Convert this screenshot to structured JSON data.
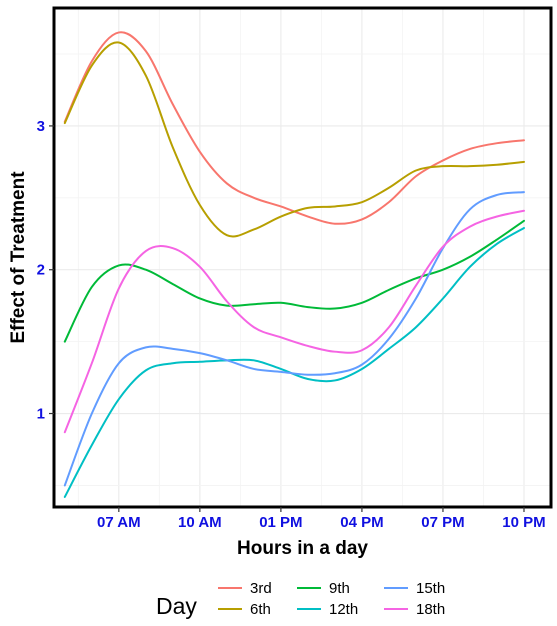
{
  "chart_data": {
    "type": "line",
    "title": "",
    "xlabel": "Hours in a day",
    "ylabel": "Effect of Treatment",
    "x_ticks": [
      "07 AM",
      "10 AM",
      "01 PM",
      "04 PM",
      "07 PM",
      "10 PM"
    ],
    "x_tick_hours": [
      7,
      10,
      13,
      16,
      19,
      22
    ],
    "xlim": [
      4.6,
      23
    ],
    "y_ticks": [
      "1",
      "2",
      "3"
    ],
    "y_tick_values": [
      1,
      2,
      3
    ],
    "ylim": [
      0.35,
      3.82
    ],
    "grid": true,
    "legend_title": "Day",
    "legend_position": "bottom",
    "hours": [
      5,
      6,
      7,
      8,
      9,
      10,
      11,
      12,
      13,
      14,
      15,
      16,
      17,
      18,
      19,
      20,
      21,
      22
    ],
    "series": [
      {
        "name": "3rd",
        "color": "#F8766D",
        "values": [
          3.03,
          3.45,
          3.65,
          3.52,
          3.15,
          2.82,
          2.6,
          2.5,
          2.44,
          2.37,
          2.32,
          2.35,
          2.47,
          2.65,
          2.76,
          2.84,
          2.88,
          2.9
        ]
      },
      {
        "name": "6th",
        "color": "#B79F00",
        "values": [
          3.02,
          3.42,
          3.58,
          3.35,
          2.85,
          2.45,
          2.24,
          2.28,
          2.37,
          2.43,
          2.44,
          2.47,
          2.57,
          2.69,
          2.72,
          2.72,
          2.73,
          2.75
        ]
      },
      {
        "name": "9th",
        "color": "#00BA38",
        "values": [
          1.5,
          1.88,
          2.03,
          2.0,
          1.9,
          1.8,
          1.75,
          1.76,
          1.77,
          1.74,
          1.73,
          1.77,
          1.86,
          1.94,
          2.0,
          2.09,
          2.21,
          2.34
        ]
      },
      {
        "name": "12th",
        "color": "#00BFC4",
        "values": [
          0.42,
          0.78,
          1.1,
          1.3,
          1.35,
          1.36,
          1.37,
          1.37,
          1.31,
          1.24,
          1.23,
          1.31,
          1.45,
          1.6,
          1.8,
          2.02,
          2.18,
          2.29
        ]
      },
      {
        "name": "15th",
        "color": "#619CFF",
        "values": [
          0.5,
          1.0,
          1.35,
          1.46,
          1.45,
          1.42,
          1.37,
          1.31,
          1.29,
          1.27,
          1.28,
          1.34,
          1.52,
          1.8,
          2.15,
          2.42,
          2.52,
          2.54
        ]
      },
      {
        "name": "18th",
        "color": "#F564E3",
        "values": [
          0.87,
          1.35,
          1.87,
          2.13,
          2.15,
          2.02,
          1.78,
          1.6,
          1.53,
          1.47,
          1.43,
          1.44,
          1.6,
          1.89,
          2.16,
          2.3,
          2.37,
          2.41
        ]
      }
    ]
  }
}
